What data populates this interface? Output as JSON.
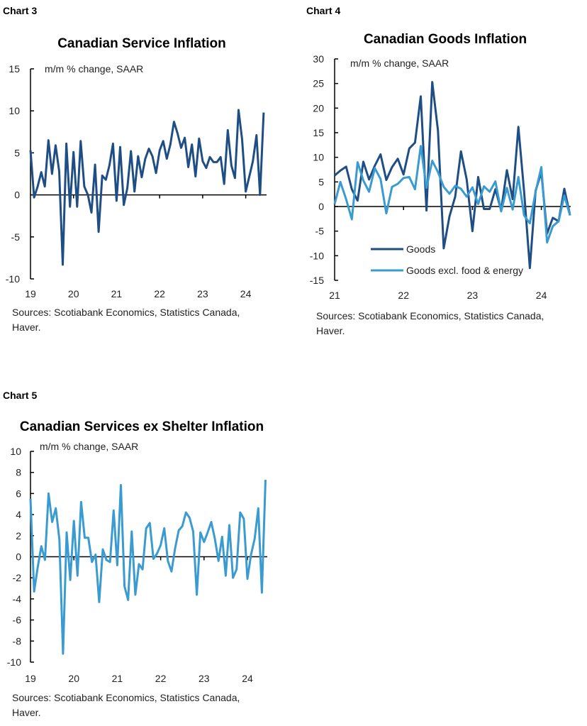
{
  "chart_data": [
    {
      "type": "line",
      "chart_label": "Chart 3",
      "title": "Canadian Service Inflation",
      "ylabel": "m/m % change, SAAR",
      "source": [
        "Sources: Scotiabank Economics, Statistics Canada,",
        "Haver."
      ],
      "ylim": [
        -10,
        15
      ],
      "yticks": [
        15,
        10,
        5,
        0,
        -5,
        -10
      ],
      "xticks": [
        "19",
        "20",
        "21",
        "22",
        "23",
        "24"
      ],
      "x_start": "2019-01",
      "x_frequency": "monthly",
      "series": [
        {
          "color": "#1f4e85",
          "values": [
            5.3,
            -0.3,
            1,
            2.7,
            1,
            6.5,
            2.5,
            5.9,
            2.8,
            -8.3,
            6.1,
            -1.4,
            5.1,
            -1.4,
            6.4,
            1,
            0,
            -2.1,
            3.6,
            -4.4,
            2.3,
            1.8,
            3.5,
            6.1,
            -0.7,
            5.7,
            -1.2,
            0.8,
            5.2,
            0.4,
            4.6,
            2.1,
            4.3,
            5.5,
            4.6,
            2.6,
            5.3,
            6.4,
            4.3,
            6.0,
            8.7,
            7.3,
            5.6,
            6.8,
            3.3,
            6.0,
            2.2,
            6.7,
            4.0,
            3.2,
            4.5,
            3.9,
            3.9,
            4.5,
            1.3,
            7.7,
            3.5,
            2.0,
            10.1,
            6.6,
            0.4,
            2.2,
            4.0,
            7.1,
            0,
            9.8
          ]
        }
      ]
    },
    {
      "type": "line",
      "chart_label": "Chart 4",
      "title": "Canadian Goods Inflation",
      "ylabel": "m/m % change, SAAR",
      "source": [
        "Sources: Scotiabank Economics, Statistics Canada,",
        "Haver."
      ],
      "ylim": [
        -15,
        30
      ],
      "yticks": [
        30,
        25,
        20,
        15,
        10,
        5,
        0,
        -5,
        -10,
        -15
      ],
      "xticks": [
        "21",
        "22",
        "23",
        "24"
      ],
      "x_start": "2021-01",
      "x_frequency": "monthly",
      "legend": "bottom-left",
      "series": [
        {
          "name": "Goods",
          "color": "#1f4e85",
          "values": [
            6.3,
            7.3,
            8.1,
            3.5,
            1.2,
            9.1,
            5.5,
            8.3,
            10.6,
            5.4,
            8.0,
            9.7,
            6.5,
            11.8,
            13.0,
            22.4,
            -0.8,
            25.3,
            15.4,
            -8.5,
            -2.0,
            2.0,
            11.2,
            5.5,
            -5.0,
            6.0,
            -0.5,
            -0.5,
            3.5,
            -0.8,
            7.4,
            1.5,
            16.2,
            3.0,
            -12.5,
            3.2,
            7.0,
            -5.5,
            -2.3,
            -3.0,
            3.6,
            -1.8
          ]
        },
        {
          "name": "Goods excl. food & energy",
          "color": "#3a9bd0",
          "values": [
            0.5,
            5.0,
            1.5,
            -2.6,
            9.0,
            5.3,
            3.0,
            7.8,
            5.6,
            -1.4,
            4.0,
            4.6,
            5.8,
            6.0,
            3.5,
            12.3,
            3.8,
            9.3,
            7.0,
            4.0,
            2.6,
            4.2,
            3.6,
            2.0,
            3.9,
            0.5,
            4.1,
            3.0,
            5.1,
            -1.0,
            3.8,
            -0.6,
            6.0,
            -1.8,
            -3.4,
            3.0,
            8.0,
            -7.3,
            -4.0,
            -3.0,
            2.2,
            -1.8
          ]
        }
      ]
    },
    {
      "type": "line",
      "chart_label": "Chart 5",
      "title": "Canadian Services ex Shelter Inflation",
      "ylabel": "m/m % change, SAAR",
      "source": [
        "Sources: Scotiabank Economics, Statistics Canada,",
        "Haver."
      ],
      "ylim": [
        -10,
        10
      ],
      "yticks": [
        10,
        8,
        6,
        4,
        2,
        0,
        -2,
        -4,
        -6,
        -8,
        -10
      ],
      "xticks": [
        "19",
        "20",
        "21",
        "22",
        "23",
        "24"
      ],
      "x_start": "2019-01",
      "x_frequency": "monthly",
      "series": [
        {
          "color": "#3a9bd0",
          "values": [
            5.5,
            -3.3,
            -1.0,
            1.0,
            -0.3,
            6.0,
            3.3,
            4.6,
            1.6,
            -9.2,
            2.3,
            -2.2,
            3.4,
            -1.8,
            5.2,
            1.8,
            1.8,
            -0.5,
            0.2,
            -4.3,
            0.7,
            -0.3,
            -0.5,
            4.4,
            -0.8,
            6.8,
            -2.8,
            -4.1,
            2.4,
            -3.6,
            -0.7,
            -1.2,
            2.7,
            3.2,
            -0.2,
            0.3,
            1.1,
            2.7,
            -0.4,
            -1.4,
            0.8,
            2.5,
            2.9,
            4.2,
            3.7,
            2.4,
            -3.6,
            2.3,
            1.4,
            2.3,
            3.3,
            1.7,
            -0.4,
            1.9,
            -1.8,
            3.0,
            -2.0,
            -1.2,
            4.2,
            3.6,
            -2.1,
            0.2,
            1.7,
            4.6,
            -3.4,
            7.3
          ]
        }
      ]
    }
  ]
}
